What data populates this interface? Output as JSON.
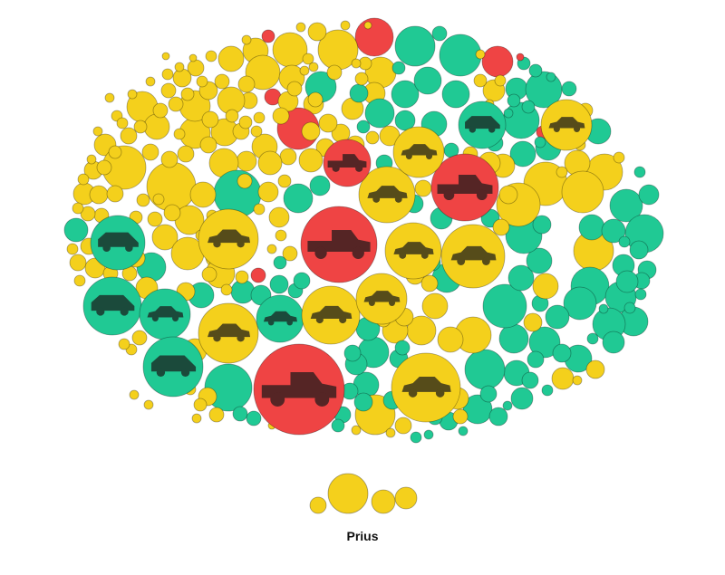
{
  "colors": {
    "yellow": "#f4d01c",
    "green": "#20c994",
    "red": "#ef4444",
    "car_tint": "#1a1a1a"
  },
  "legend_group": {
    "label": "Prius"
  },
  "bubble_categories": [
    "car-model",
    "truck-model",
    "suv-model"
  ]
}
